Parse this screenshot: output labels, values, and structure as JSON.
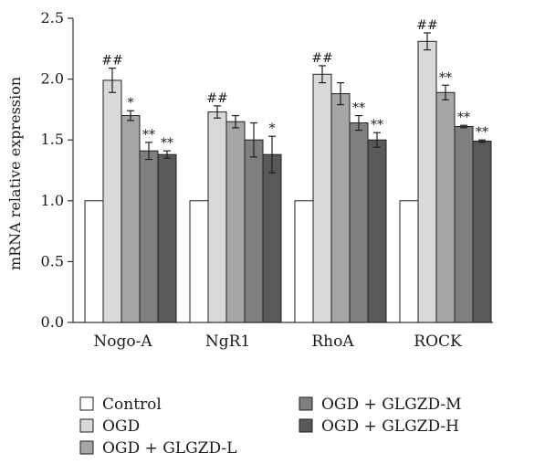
{
  "chart_data": {
    "type": "bar",
    "title": "",
    "xlabel": "",
    "ylabel": "mRNA relative expression",
    "ylim": [
      0,
      2.5
    ],
    "yticks": [
      "0.0",
      "0.5",
      "1.0",
      "1.5",
      "2.0",
      "2.5"
    ],
    "categories": [
      "Nogo-A",
      "NgR1",
      "RhoA",
      "ROCK"
    ],
    "grid": false,
    "legend_position": "bottom",
    "series": [
      {
        "name": "Control",
        "color": "#ffffff",
        "values": [
          1.0,
          1.0,
          1.0,
          1.0
        ],
        "errors": [
          0,
          0,
          0,
          0
        ],
        "annotations": [
          "",
          "",
          "",
          ""
        ]
      },
      {
        "name": "OGD",
        "color": "#d9d9d9",
        "values": [
          1.99,
          1.73,
          2.04,
          2.31
        ],
        "errors": [
          0.1,
          0.05,
          0.07,
          0.07
        ],
        "annotations": [
          "##",
          "##",
          "##",
          "##"
        ]
      },
      {
        "name": "OGD + GLGZD-L",
        "color": "#a6a6a6",
        "values": [
          1.7,
          1.65,
          1.88,
          1.89
        ],
        "errors": [
          0.04,
          0.05,
          0.09,
          0.06
        ],
        "annotations": [
          "*",
          "",
          "",
          "**"
        ]
      },
      {
        "name": "OGD + GLGZD-M",
        "color": "#7f7f7f",
        "values": [
          1.41,
          1.5,
          1.64,
          1.61
        ],
        "errors": [
          0.07,
          0.14,
          0.06,
          0.01
        ],
        "annotations": [
          "**",
          "",
          "**",
          "**"
        ]
      },
      {
        "name": "OGD + GLGZD-H",
        "color": "#595959",
        "values": [
          1.38,
          1.38,
          1.5,
          1.49
        ],
        "errors": [
          0.03,
          0.15,
          0.06,
          0.01
        ],
        "annotations": [
          "**",
          "*",
          "**",
          "**"
        ]
      }
    ]
  }
}
